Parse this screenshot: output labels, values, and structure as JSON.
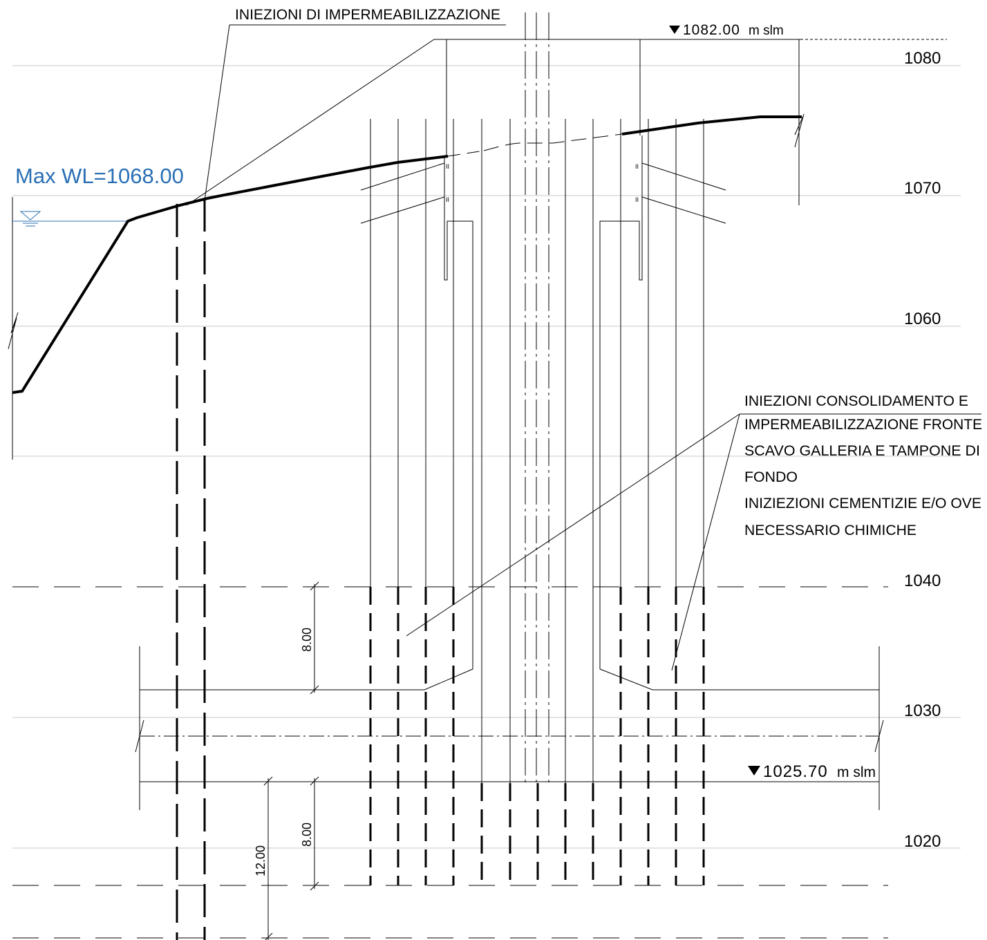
{
  "labels": {
    "injections_watertight": "INIEZIONI DI IMPERMEABILIZZAZIONE",
    "top_level_value": "1082.00",
    "top_level_unit": "m slm",
    "bottom_level_value": "1025.70",
    "bottom_level_unit": "m slm",
    "max_wl": "Max WL=1068.00",
    "note_lines": [
      "INIEZIONI CONSOLIDAMENTO E",
      "IMPERMEABILIZZAZIONE FRONTE",
      "SCAVO GALLERIA E TAMPONE DI",
      "FONDO",
      "INIZIEZIONI CEMENTIZIE E/O OVE",
      "NECESSARIO CHIMICHE"
    ]
  },
  "elevations": [
    "1080",
    "1070",
    "1060",
    "1040",
    "1030",
    "1020"
  ],
  "dimensions": {
    "upper_height": "8.00",
    "lower_height": "8.00",
    "total_depth": "12.00"
  },
  "colors": {
    "line": "#000000",
    "grid": "#c8c8c8",
    "water": "#2a6fb5"
  }
}
